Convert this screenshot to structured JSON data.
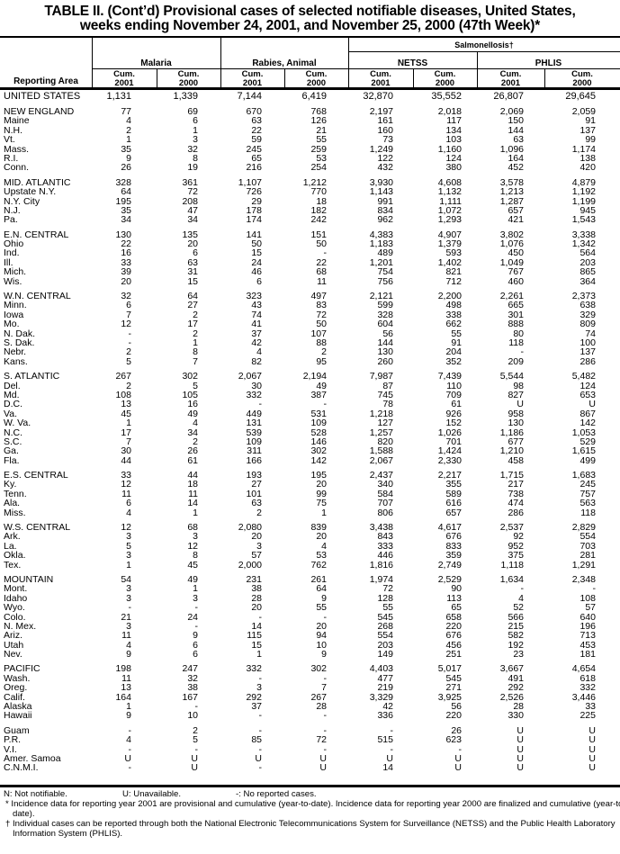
{
  "title": {
    "line1": "TABLE II. (Cont’d) Provisional cases of selected notifiable diseases, United States,",
    "line2": "weeks ending November 24, 2001, and November 25, 2000 (47th Week)*"
  },
  "header": {
    "reporting_area": "Reporting Area",
    "salmonellosis": "Salmonellosis†",
    "groups": [
      "Malaria",
      "Rabies, Animal",
      "NETSS",
      "PHLIS"
    ],
    "cum_label": "Cum.",
    "years": [
      "2001",
      "2000",
      "2001",
      "2000",
      "2001",
      "2000",
      "2001",
      "2000"
    ]
  },
  "groups": [
    [
      [
        "UNITED STATES",
        "1,131",
        "1,339",
        "7,144",
        "6,419",
        "32,870",
        "35,552",
        "26,807",
        "29,645"
      ]
    ],
    [
      [
        "NEW ENGLAND",
        "77",
        "69",
        "670",
        "768",
        "2,197",
        "2,018",
        "2,069",
        "2,059"
      ],
      [
        "Maine",
        "4",
        "6",
        "63",
        "126",
        "161",
        "117",
        "150",
        "91"
      ],
      [
        "N.H.",
        "2",
        "1",
        "22",
        "21",
        "160",
        "134",
        "144",
        "137"
      ],
      [
        "Vt.",
        "1",
        "3",
        "59",
        "55",
        "73",
        "103",
        "63",
        "99"
      ],
      [
        "Mass.",
        "35",
        "32",
        "245",
        "259",
        "1,249",
        "1,160",
        "1,096",
        "1,174"
      ],
      [
        "R.I.",
        "9",
        "8",
        "65",
        "53",
        "122",
        "124",
        "164",
        "138"
      ],
      [
        "Conn.",
        "26",
        "19",
        "216",
        "254",
        "432",
        "380",
        "452",
        "420"
      ]
    ],
    [
      [
        "MID. ATLANTIC",
        "328",
        "361",
        "1,107",
        "1,212",
        "3,930",
        "4,608",
        "3,578",
        "4,879"
      ],
      [
        "Upstate N.Y.",
        "64",
        "72",
        "726",
        "770",
        "1,143",
        "1,132",
        "1,213",
        "1,192"
      ],
      [
        "N.Y. City",
        "195",
        "208",
        "29",
        "18",
        "991",
        "1,111",
        "1,287",
        "1,199"
      ],
      [
        "N.J.",
        "35",
        "47",
        "178",
        "182",
        "834",
        "1,072",
        "657",
        "945"
      ],
      [
        "Pa.",
        "34",
        "34",
        "174",
        "242",
        "962",
        "1,293",
        "421",
        "1,543"
      ]
    ],
    [
      [
        "E.N. CENTRAL",
        "130",
        "135",
        "141",
        "151",
        "4,383",
        "4,907",
        "3,802",
        "3,338"
      ],
      [
        "Ohio",
        "22",
        "20",
        "50",
        "50",
        "1,183",
        "1,379",
        "1,076",
        "1,342"
      ],
      [
        "Ind.",
        "16",
        "6",
        "15",
        "-",
        "489",
        "593",
        "450",
        "564"
      ],
      [
        "Ill.",
        "33",
        "63",
        "24",
        "22",
        "1,201",
        "1,402",
        "1,049",
        "203"
      ],
      [
        "Mich.",
        "39",
        "31",
        "46",
        "68",
        "754",
        "821",
        "767",
        "865"
      ],
      [
        "Wis.",
        "20",
        "15",
        "6",
        "11",
        "756",
        "712",
        "460",
        "364"
      ]
    ],
    [
      [
        "W.N. CENTRAL",
        "32",
        "64",
        "323",
        "497",
        "2,121",
        "2,200",
        "2,261",
        "2,373"
      ],
      [
        "Minn.",
        "6",
        "27",
        "43",
        "83",
        "599",
        "498",
        "665",
        "638"
      ],
      [
        "Iowa",
        "7",
        "2",
        "74",
        "72",
        "328",
        "338",
        "301",
        "329"
      ],
      [
        "Mo.",
        "12",
        "17",
        "41",
        "50",
        "604",
        "662",
        "888",
        "809"
      ],
      [
        "N. Dak.",
        "-",
        "2",
        "37",
        "107",
        "56",
        "55",
        "80",
        "74"
      ],
      [
        "S. Dak.",
        "-",
        "1",
        "42",
        "88",
        "144",
        "91",
        "118",
        "100"
      ],
      [
        "Nebr.",
        "2",
        "8",
        "4",
        "2",
        "130",
        "204",
        "-",
        "137"
      ],
      [
        "Kans.",
        "5",
        "7",
        "82",
        "95",
        "260",
        "352",
        "209",
        "286"
      ]
    ],
    [
      [
        "S. ATLANTIC",
        "267",
        "302",
        "2,067",
        "2,194",
        "7,987",
        "7,439",
        "5,544",
        "5,482"
      ],
      [
        "Del.",
        "2",
        "5",
        "30",
        "49",
        "87",
        "110",
        "98",
        "124"
      ],
      [
        "Md.",
        "108",
        "105",
        "332",
        "387",
        "745",
        "709",
        "827",
        "653"
      ],
      [
        "D.C.",
        "13",
        "16",
        "-",
        "-",
        "78",
        "61",
        "U",
        "U"
      ],
      [
        "Va.",
        "45",
        "49",
        "449",
        "531",
        "1,218",
        "926",
        "958",
        "867"
      ],
      [
        "W. Va.",
        "1",
        "4",
        "131",
        "109",
        "127",
        "152",
        "130",
        "142"
      ],
      [
        "N.C.",
        "17",
        "34",
        "539",
        "528",
        "1,257",
        "1,026",
        "1,186",
        "1,053"
      ],
      [
        "S.C.",
        "7",
        "2",
        "109",
        "146",
        "820",
        "701",
        "677",
        "529"
      ],
      [
        "Ga.",
        "30",
        "26",
        "311",
        "302",
        "1,588",
        "1,424",
        "1,210",
        "1,615"
      ],
      [
        "Fla.",
        "44",
        "61",
        "166",
        "142",
        "2,067",
        "2,330",
        "458",
        "499"
      ]
    ],
    [
      [
        "E.S. CENTRAL",
        "33",
        "44",
        "193",
        "195",
        "2,437",
        "2,217",
        "1,715",
        "1,683"
      ],
      [
        "Ky.",
        "12",
        "18",
        "27",
        "20",
        "340",
        "355",
        "217",
        "245"
      ],
      [
        "Tenn.",
        "11",
        "11",
        "101",
        "99",
        "584",
        "589",
        "738",
        "757"
      ],
      [
        "Ala.",
        "6",
        "14",
        "63",
        "75",
        "707",
        "616",
        "474",
        "563"
      ],
      [
        "Miss.",
        "4",
        "1",
        "2",
        "1",
        "806",
        "657",
        "286",
        "118"
      ]
    ],
    [
      [
        "W.S. CENTRAL",
        "12",
        "68",
        "2,080",
        "839",
        "3,438",
        "4,617",
        "2,537",
        "2,829"
      ],
      [
        "Ark.",
        "3",
        "3",
        "20",
        "20",
        "843",
        "676",
        "92",
        "554"
      ],
      [
        "La.",
        "5",
        "12",
        "3",
        "4",
        "333",
        "833",
        "952",
        "703"
      ],
      [
        "Okla.",
        "3",
        "8",
        "57",
        "53",
        "446",
        "359",
        "375",
        "281"
      ],
      [
        "Tex.",
        "1",
        "45",
        "2,000",
        "762",
        "1,816",
        "2,749",
        "1,118",
        "1,291"
      ]
    ],
    [
      [
        "MOUNTAIN",
        "54",
        "49",
        "231",
        "261",
        "1,974",
        "2,529",
        "1,634",
        "2,348"
      ],
      [
        "Mont.",
        "3",
        "1",
        "38",
        "64",
        "72",
        "90",
        "-",
        "-"
      ],
      [
        "Idaho",
        "3",
        "3",
        "28",
        "9",
        "128",
        "113",
        "4",
        "108"
      ],
      [
        "Wyo.",
        "-",
        "-",
        "20",
        "55",
        "55",
        "65",
        "52",
        "57"
      ],
      [
        "Colo.",
        "21",
        "24",
        "-",
        "-",
        "545",
        "658",
        "566",
        "640"
      ],
      [
        "N. Mex.",
        "3",
        "-",
        "14",
        "20",
        "268",
        "220",
        "215",
        "196"
      ],
      [
        "Ariz.",
        "11",
        "9",
        "115",
        "94",
        "554",
        "676",
        "582",
        "713"
      ],
      [
        "Utah",
        "4",
        "6",
        "15",
        "10",
        "203",
        "456",
        "192",
        "453"
      ],
      [
        "Nev.",
        "9",
        "6",
        "1",
        "9",
        "149",
        "251",
        "23",
        "181"
      ]
    ],
    [
      [
        "PACIFIC",
        "198",
        "247",
        "332",
        "302",
        "4,403",
        "5,017",
        "3,667",
        "4,654"
      ],
      [
        "Wash.",
        "11",
        "32",
        "-",
        "-",
        "477",
        "545",
        "491",
        "618"
      ],
      [
        "Oreg.",
        "13",
        "38",
        "3",
        "7",
        "219",
        "271",
        "292",
        "332"
      ],
      [
        "Calif.",
        "164",
        "167",
        "292",
        "267",
        "3,329",
        "3,925",
        "2,526",
        "3,446"
      ],
      [
        "Alaska",
        "1",
        "-",
        "37",
        "28",
        "42",
        "56",
        "28",
        "33"
      ],
      [
        "Hawaii",
        "9",
        "10",
        "-",
        "-",
        "336",
        "220",
        "330",
        "225"
      ]
    ],
    [
      [
        "Guam",
        "-",
        "2",
        "-",
        "-",
        "-",
        "26",
        "U",
        "U"
      ],
      [
        "P.R.",
        "4",
        "5",
        "85",
        "72",
        "515",
        "623",
        "U",
        "U"
      ],
      [
        "V.I.",
        "-",
        "-",
        "-",
        "-",
        "-",
        "-",
        "U",
        "U"
      ],
      [
        "Amer. Samoa",
        "U",
        "U",
        "U",
        "U",
        "U",
        "U",
        "U",
        "U"
      ],
      [
        "C.N.M.I.",
        "-",
        "U",
        "-",
        "U",
        "14",
        "U",
        "U",
        "U"
      ]
    ]
  ],
  "footnotes": {
    "legend": [
      "N: Not notifiable.",
      "U: Unavailable.",
      "-: No reported cases."
    ],
    "star": "* Incidence data for reporting year 2001 are provisional and cumulative (year-to-date). Incidence data for reporting year 2000 are finalized and cumulative (year-to-date).",
    "dagger": "† Individual cases can be reported through both the National Electronic Telecommunications System for Surveillance (NETSS) and the Public Health Laboratory Information System (PHLIS)."
  }
}
